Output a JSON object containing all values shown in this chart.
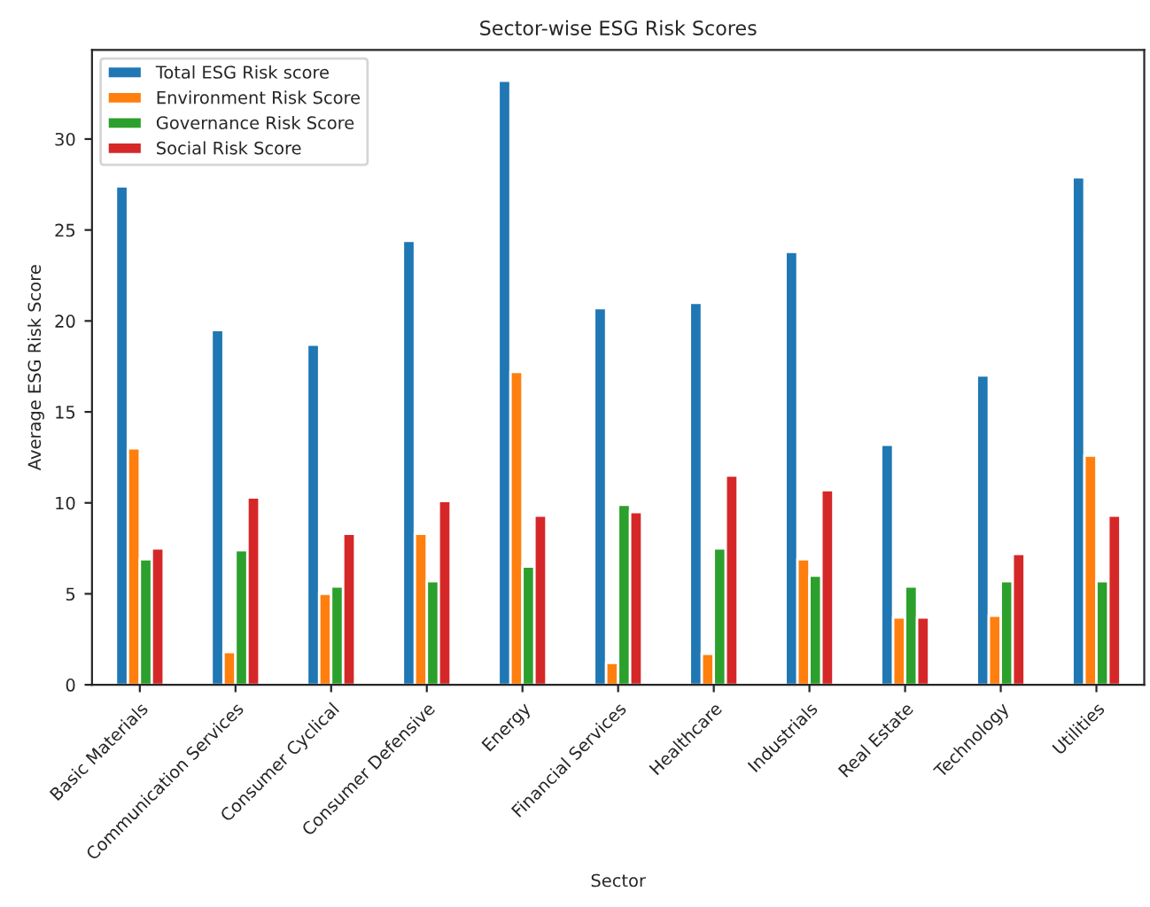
{
  "chart_data": {
    "type": "bar",
    "title": "Sector-wise ESG Risk Scores",
    "xlabel": "Sector",
    "ylabel": "Average ESG Risk Score",
    "categories": [
      "Basic Materials",
      "Communication Services",
      "Consumer Cyclical",
      "Consumer Defensive",
      "Energy",
      "Financial Services",
      "Healthcare",
      "Industrials",
      "Real Estate",
      "Technology",
      "Utilities"
    ],
    "series": [
      {
        "name": "Total ESG Risk score",
        "color": "#1f77b4",
        "values": [
          27.4,
          19.5,
          18.7,
          24.4,
          33.2,
          20.7,
          21.0,
          23.8,
          13.2,
          17.0,
          27.9
        ]
      },
      {
        "name": "Environment Risk Score",
        "color": "#ff7f0e",
        "values": [
          13.0,
          1.8,
          5.0,
          8.3,
          17.2,
          1.2,
          1.7,
          6.9,
          3.7,
          3.8,
          12.6
        ]
      },
      {
        "name": "Governance Risk Score",
        "color": "#2ca02c",
        "values": [
          6.9,
          7.4,
          5.4,
          5.7,
          6.5,
          9.9,
          7.5,
          6.0,
          5.4,
          5.7,
          5.7
        ]
      },
      {
        "name": "Social Risk Score",
        "color": "#d62728",
        "values": [
          7.5,
          10.3,
          8.3,
          10.1,
          9.3,
          9.5,
          11.5,
          10.7,
          3.7,
          7.2,
          9.3
        ]
      }
    ],
    "ylim": [
      0,
      34.9
    ],
    "yticks": [
      0,
      5,
      10,
      15,
      20,
      25,
      30
    ],
    "grid": false,
    "legend": "top left"
  }
}
